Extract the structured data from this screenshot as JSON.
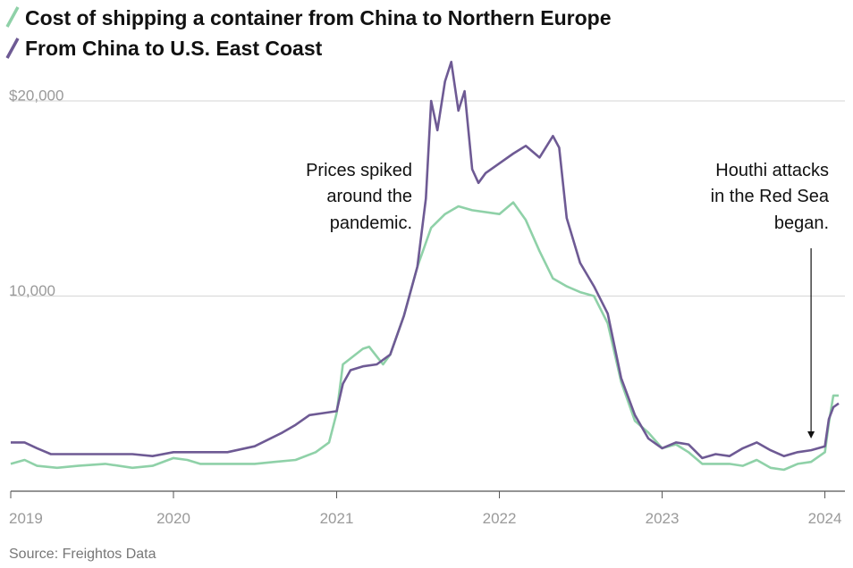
{
  "chart_data": {
    "type": "line",
    "title": "",
    "xlabel": "",
    "ylabel": "",
    "ylim": [
      0,
      22000
    ],
    "xlim": [
      "2019-01-01",
      "2024-02-15"
    ],
    "grid": true,
    "legend_placement": "top-left",
    "y_ticks": [
      {
        "value": 20000,
        "label": "$20,000"
      },
      {
        "value": 10000,
        "label": "10,000"
      }
    ],
    "x_ticks": [
      {
        "value": "2019-01-01",
        "label": "2019"
      },
      {
        "value": "2020-01-01",
        "label": "2020"
      },
      {
        "value": "2021-01-01",
        "label": "2021"
      },
      {
        "value": "2022-01-01",
        "label": "2022"
      },
      {
        "value": "2023-01-01",
        "label": "2023"
      },
      {
        "value": "2024-01-01",
        "label": "2024"
      }
    ],
    "series": [
      {
        "name": "Cost of shipping a container from China to Northern Europe",
        "color": "#8fd1a8",
        "points": [
          [
            "2019-01-01",
            1400
          ],
          [
            "2019-02-01",
            1600
          ],
          [
            "2019-03-01",
            1300
          ],
          [
            "2019-04-15",
            1200
          ],
          [
            "2019-06-01",
            1300
          ],
          [
            "2019-08-01",
            1400
          ],
          [
            "2019-10-01",
            1200
          ],
          [
            "2019-11-15",
            1300
          ],
          [
            "2020-01-01",
            1700
          ],
          [
            "2020-02-01",
            1600
          ],
          [
            "2020-03-01",
            1400
          ],
          [
            "2020-05-01",
            1400
          ],
          [
            "2020-07-01",
            1400
          ],
          [
            "2020-08-15",
            1500
          ],
          [
            "2020-10-01",
            1600
          ],
          [
            "2020-11-15",
            2000
          ],
          [
            "2020-12-15",
            2500
          ],
          [
            "2021-01-01",
            4000
          ],
          [
            "2021-01-15",
            6500
          ],
          [
            "2021-02-01",
            6800
          ],
          [
            "2021-03-01",
            7300
          ],
          [
            "2021-03-15",
            7400
          ],
          [
            "2021-04-01",
            6900
          ],
          [
            "2021-04-15",
            6500
          ],
          [
            "2021-05-01",
            7000
          ],
          [
            "2021-06-01",
            9000
          ],
          [
            "2021-07-01",
            11500
          ],
          [
            "2021-08-01",
            13500
          ],
          [
            "2021-09-01",
            14200
          ],
          [
            "2021-10-01",
            14600
          ],
          [
            "2021-11-01",
            14400
          ],
          [
            "2022-01-01",
            14200
          ],
          [
            "2022-02-01",
            14800
          ],
          [
            "2022-03-01",
            13900
          ],
          [
            "2022-04-01",
            12300
          ],
          [
            "2022-05-01",
            10900
          ],
          [
            "2022-06-01",
            10500
          ],
          [
            "2022-07-01",
            10200
          ],
          [
            "2022-08-01",
            10000
          ],
          [
            "2022-09-01",
            8600
          ],
          [
            "2022-10-01",
            5600
          ],
          [
            "2022-11-01",
            3600
          ],
          [
            "2022-12-01",
            3000
          ],
          [
            "2023-01-01",
            2200
          ],
          [
            "2023-02-01",
            2400
          ],
          [
            "2023-03-01",
            2000
          ],
          [
            "2023-04-01",
            1400
          ],
          [
            "2023-06-01",
            1400
          ],
          [
            "2023-07-01",
            1300
          ],
          [
            "2023-08-01",
            1600
          ],
          [
            "2023-09-01",
            1200
          ],
          [
            "2023-10-01",
            1100
          ],
          [
            "2023-11-01",
            1400
          ],
          [
            "2023-12-01",
            1500
          ],
          [
            "2024-01-01",
            2000
          ],
          [
            "2024-01-10",
            3500
          ],
          [
            "2024-01-20",
            4900
          ],
          [
            "2024-02-01",
            4900
          ]
        ]
      },
      {
        "name": "From China to U.S. East Coast",
        "color": "#6e5a94",
        "points": [
          [
            "2019-01-01",
            2500
          ],
          [
            "2019-02-01",
            2500
          ],
          [
            "2019-03-01",
            2200
          ],
          [
            "2019-04-01",
            1900
          ],
          [
            "2019-06-01",
            1900
          ],
          [
            "2019-08-01",
            1900
          ],
          [
            "2019-10-01",
            1900
          ],
          [
            "2019-11-15",
            1800
          ],
          [
            "2020-01-01",
            2000
          ],
          [
            "2020-03-01",
            2000
          ],
          [
            "2020-05-01",
            2000
          ],
          [
            "2020-07-01",
            2300
          ],
          [
            "2020-09-01",
            3000
          ],
          [
            "2020-10-01",
            3400
          ],
          [
            "2020-11-01",
            3900
          ],
          [
            "2020-12-01",
            4000
          ],
          [
            "2021-01-01",
            4100
          ],
          [
            "2021-01-15",
            5500
          ],
          [
            "2021-02-01",
            6200
          ],
          [
            "2021-03-01",
            6400
          ],
          [
            "2021-04-01",
            6500
          ],
          [
            "2021-05-01",
            7000
          ],
          [
            "2021-06-01",
            9000
          ],
          [
            "2021-07-01",
            11500
          ],
          [
            "2021-07-20",
            15000
          ],
          [
            "2021-08-01",
            20000
          ],
          [
            "2021-08-15",
            18500
          ],
          [
            "2021-09-01",
            21000
          ],
          [
            "2021-09-15",
            22000
          ],
          [
            "2021-10-01",
            19500
          ],
          [
            "2021-10-15",
            20500
          ],
          [
            "2021-11-01",
            16500
          ],
          [
            "2021-11-15",
            15800
          ],
          [
            "2021-12-01",
            16300
          ],
          [
            "2022-01-01",
            16800
          ],
          [
            "2022-02-01",
            17300
          ],
          [
            "2022-03-01",
            17700
          ],
          [
            "2022-04-01",
            17100
          ],
          [
            "2022-05-01",
            18200
          ],
          [
            "2022-05-15",
            17600
          ],
          [
            "2022-06-01",
            14000
          ],
          [
            "2022-07-01",
            11700
          ],
          [
            "2022-08-01",
            10500
          ],
          [
            "2022-09-01",
            9100
          ],
          [
            "2022-10-01",
            5800
          ],
          [
            "2022-11-01",
            3900
          ],
          [
            "2022-12-01",
            2700
          ],
          [
            "2023-01-01",
            2200
          ],
          [
            "2023-02-01",
            2500
          ],
          [
            "2023-03-01",
            2400
          ],
          [
            "2023-04-01",
            1700
          ],
          [
            "2023-05-01",
            1900
          ],
          [
            "2023-06-01",
            1800
          ],
          [
            "2023-07-01",
            2200
          ],
          [
            "2023-08-01",
            2500
          ],
          [
            "2023-09-01",
            2100
          ],
          [
            "2023-10-01",
            1800
          ],
          [
            "2023-11-01",
            2000
          ],
          [
            "2023-12-01",
            2100
          ],
          [
            "2024-01-01",
            2300
          ],
          [
            "2024-01-10",
            3700
          ],
          [
            "2024-01-20",
            4300
          ],
          [
            "2024-02-01",
            4500
          ]
        ]
      }
    ],
    "annotations": [
      {
        "lines": [
          "Prices spiked",
          "around the",
          "pandemic."
        ]
      },
      {
        "lines": [
          "Houthi attacks",
          "in the Red Sea",
          "began."
        ],
        "arrow_to": {
          "x": "2023-12-01",
          "y": 2700
        }
      }
    ],
    "source": "Source: Freightos Data"
  }
}
